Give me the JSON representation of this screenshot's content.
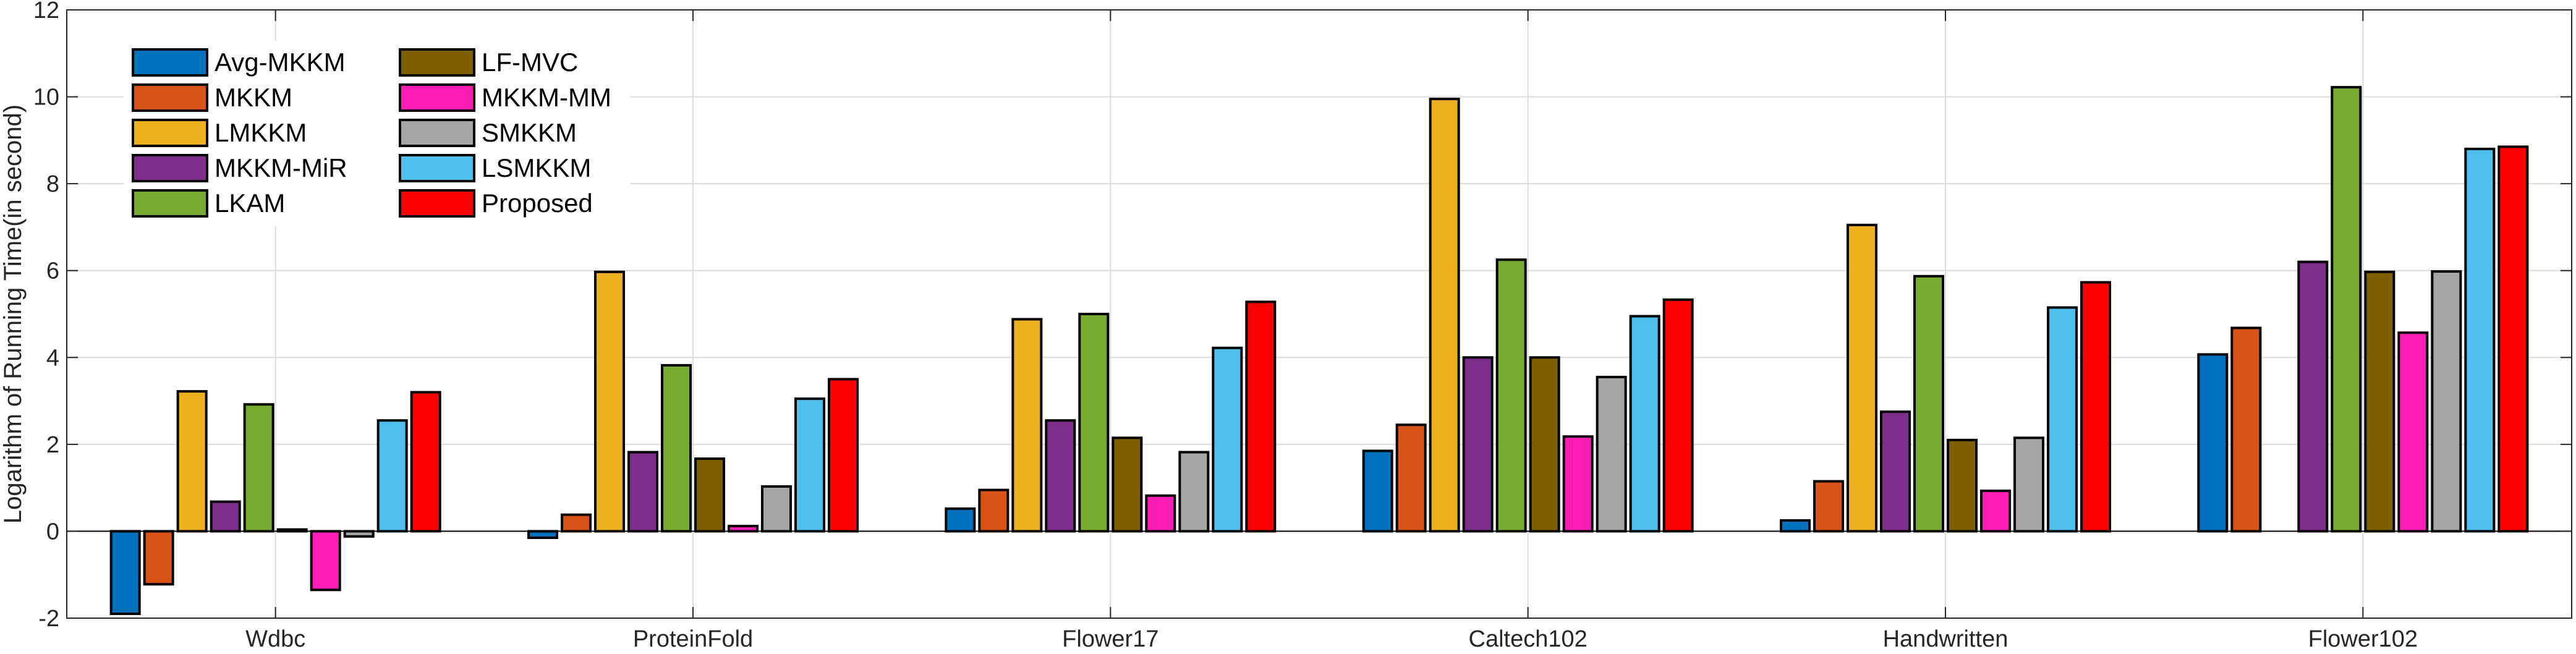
{
  "chart_data": {
    "type": "bar",
    "title": "",
    "xlabel": "",
    "ylabel": "Logarithm of Running Time(in second)",
    "ylim": [
      -2,
      12
    ],
    "yticks": [
      -2,
      0,
      2,
      4,
      6,
      8,
      10,
      12
    ],
    "grid": true,
    "legend": {
      "placement": "top-left",
      "columns": 2
    },
    "categories": [
      "Wdbc",
      "ProteinFold",
      "Flower17",
      "Caltech102",
      "Handwritten",
      "Flower102"
    ],
    "series": [
      {
        "name": "Avg-MKKM",
        "color": "#0072BD",
        "values": [
          -1.9,
          -0.15,
          0.52,
          1.85,
          0.25,
          4.07
        ]
      },
      {
        "name": "MKKM",
        "color": "#D95319",
        "values": [
          -1.22,
          0.38,
          0.95,
          2.45,
          1.15,
          4.68
        ]
      },
      {
        "name": "LMKKM",
        "color": "#EDB120",
        "values": [
          3.22,
          5.97,
          4.88,
          9.95,
          7.05,
          null
        ]
      },
      {
        "name": "MKKM-MiR",
        "color": "#7E2F8E",
        "values": [
          0.68,
          1.82,
          2.55,
          4.0,
          2.75,
          6.2
        ]
      },
      {
        "name": "LKAM",
        "color": "#77AC30",
        "values": [
          2.92,
          3.82,
          5.0,
          6.25,
          5.87,
          10.22
        ]
      },
      {
        "name": "LF-MVC",
        "color": "#7F6000",
        "values": [
          0.04,
          1.67,
          2.15,
          4.0,
          2.1,
          5.97
        ]
      },
      {
        "name": "MKKM-MM",
        "color": "#FF1DB8",
        "values": [
          -1.35,
          0.12,
          0.82,
          2.18,
          0.93,
          4.57
        ]
      },
      {
        "name": "SMKKM",
        "color": "#A6A6A6",
        "values": [
          -0.12,
          1.03,
          1.82,
          3.55,
          2.15,
          5.98
        ]
      },
      {
        "name": "LSMKKM",
        "color": "#4DBEEE",
        "values": [
          2.55,
          3.05,
          4.22,
          4.95,
          5.15,
          8.8
        ]
      },
      {
        "name": "Proposed",
        "color": "#FF0000",
        "values": [
          3.2,
          3.5,
          5.28,
          5.33,
          5.73,
          8.85
        ]
      }
    ]
  }
}
